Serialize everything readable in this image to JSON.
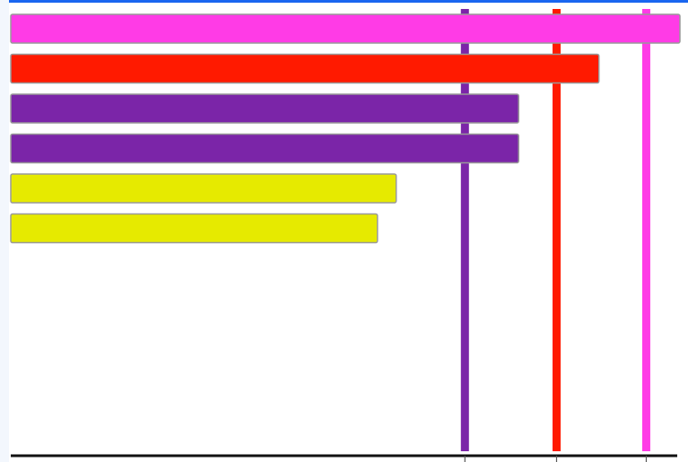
{
  "chart_data": {
    "type": "bar",
    "orientation": "horizontal",
    "title": "",
    "xlabel": "",
    "ylabel": "",
    "xlim": [
      0,
      100
    ],
    "grid": false,
    "legend": "none",
    "bars": [
      {
        "value": 100,
        "color": "#ff3be6"
      },
      {
        "value": 87.9,
        "color": "#ff1a00"
      },
      {
        "value": 75.9,
        "color": "#7b25a8"
      },
      {
        "value": 75.9,
        "color": "#7b25a8"
      },
      {
        "value": 57.6,
        "color": "#e6ea00"
      },
      {
        "value": 54.8,
        "color": "#e6ea00"
      }
    ],
    "reference_lines": [
      {
        "value": 67.8,
        "color": "#7b25a8"
      },
      {
        "value": 81.5,
        "color": "#ff1a00"
      },
      {
        "value": 94.9,
        "color": "#ff3be6"
      }
    ],
    "colors": {
      "accent_top": "#1a66f0",
      "axis": "#111111",
      "bar_border": "#999999"
    }
  }
}
